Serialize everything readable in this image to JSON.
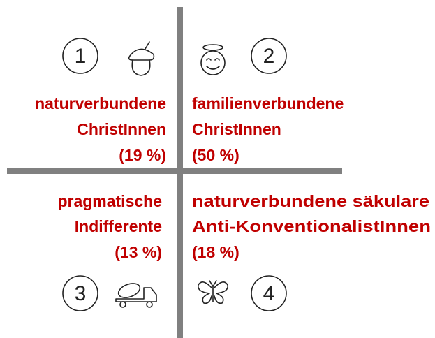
{
  "quadrants": [
    {
      "number": "1",
      "lines": [
        "naturverbundene",
        "ChristInnen",
        "(19 %)"
      ]
    },
    {
      "number": "2",
      "lines": [
        "familienverbundene",
        "ChristInnen",
        "(50 %)"
      ]
    },
    {
      "number": "3",
      "lines": [
        "pragmatische",
        "Indifferente",
        "(13 %)"
      ]
    },
    {
      "number": "4",
      "lines": [
        "naturverbundene säkulare",
        "Anti-KonventionalistInnen",
        "(18 %)"
      ]
    }
  ]
}
